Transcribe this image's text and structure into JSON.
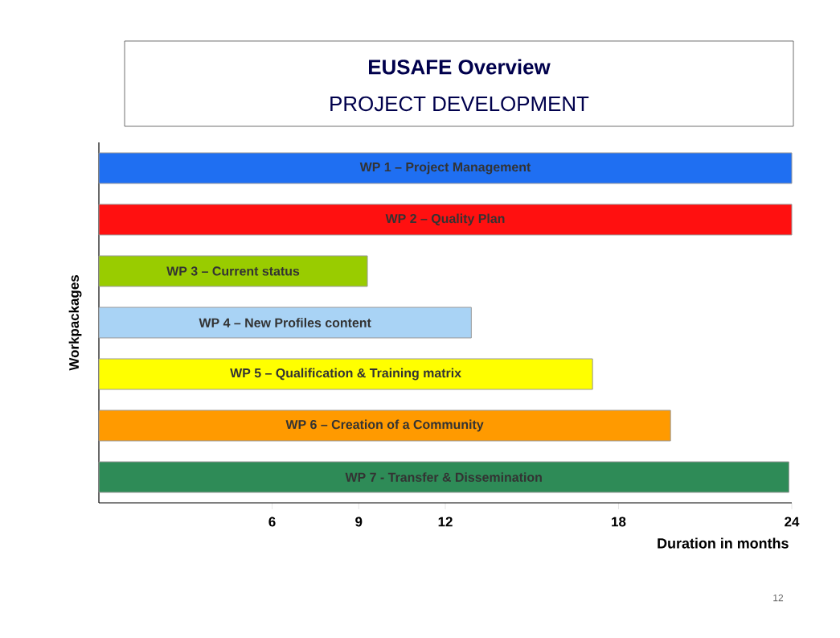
{
  "chart_data": {
    "type": "bar",
    "orientation": "horizontal",
    "title": "EUSAFE Overview",
    "subtitle": "PROJECT DEVELOPMENT",
    "xlabel": "Duration in months",
    "ylabel": "Workpackages",
    "categories": [
      "WP 1 – Project Management",
      "WP 2 – Quality Plan",
      "WP 3 – Current status",
      "WP 4 – New Profiles content",
      "WP 5 – Qualification & Training matrix",
      "WP 6 – Creation of a Community",
      "WP 7  - Transfer & Dissemination"
    ],
    "values": [
      24,
      24,
      9.3,
      12.9,
      17.1,
      19.8,
      23.9
    ],
    "colors": [
      "#1f6ff2",
      "#ff1010",
      "#99cc00",
      "#a9d3f5",
      "#ffff00",
      "#ff9a00",
      "#2e8b57"
    ],
    "xlim": [
      0,
      24
    ],
    "xticks": [
      6,
      9,
      12,
      18,
      24
    ],
    "annotations": [
      "12"
    ]
  }
}
